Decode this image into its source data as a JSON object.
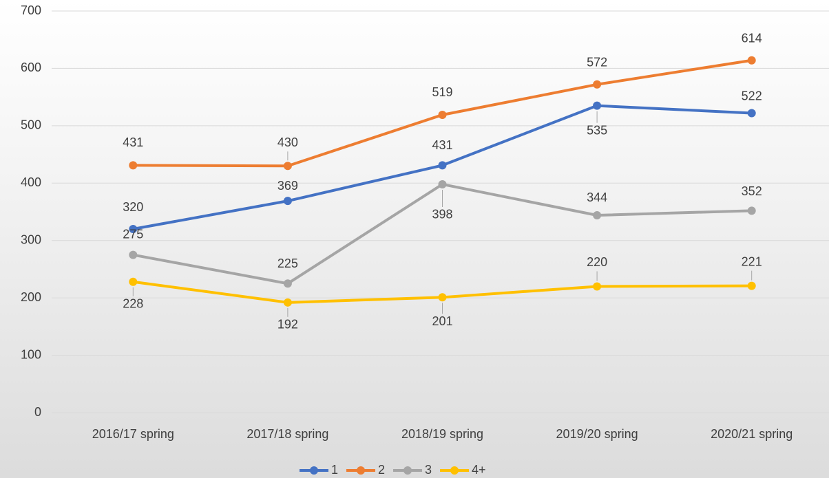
{
  "chart_data": {
    "type": "line",
    "categories": [
      "2016/17 spring",
      "2017/18 spring",
      "2018/19 spring",
      "2019/20 spring",
      "2020/21 spring"
    ],
    "series": [
      {
        "name": "1",
        "color": "#4472c4",
        "values": [
          320,
          369,
          431,
          535,
          522
        ]
      },
      {
        "name": "2",
        "color": "#ed7d31",
        "values": [
          431,
          430,
          519,
          572,
          614
        ]
      },
      {
        "name": "3",
        "color": "#a5a5a5",
        "values": [
          275,
          225,
          398,
          344,
          352
        ]
      },
      {
        "name": "4+",
        "color": "#ffc000",
        "values": [
          228,
          192,
          201,
          220,
          221
        ]
      }
    ],
    "ylim": [
      0,
      700
    ],
    "yticks": [
      0,
      100,
      200,
      300,
      400,
      500,
      600,
      700
    ],
    "grid": true,
    "legend": "bottom"
  }
}
